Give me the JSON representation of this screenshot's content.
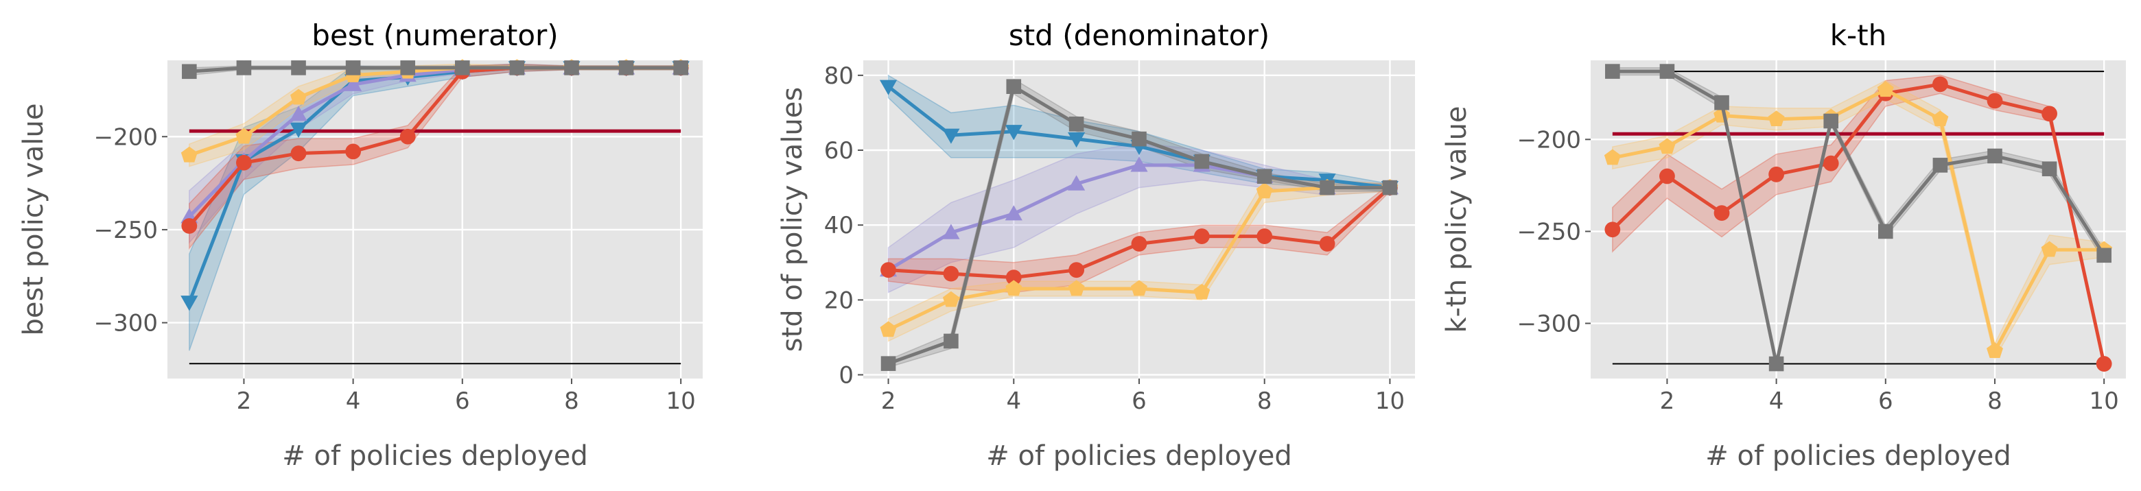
{
  "style": {
    "plot_bg": "#E5E5E5",
    "grid": "#FFFFFF",
    "series_colors": {
      "red": "#E24A33",
      "blue": "#348ABD",
      "purple": "#988ED5",
      "gray": "#777777",
      "yellow": "#FBC15E",
      "crimson": "#A60628",
      "black": "#000000"
    }
  },
  "chart_data": [
    {
      "type": "line",
      "title": "best (numerator)",
      "xlabel": "# of policies deployed",
      "ylabel": "best policy value",
      "xlim": [
        0.6,
        10.4
      ],
      "ylim": [
        -330,
        -159
      ],
      "xticks": [
        2,
        4,
        6,
        8,
        10
      ],
      "yticks": [
        -300,
        -250,
        -200
      ],
      "grid": true,
      "legend": "none",
      "hlines": [
        {
          "y": -197,
          "color": "crimson",
          "width": 5,
          "x_range": [
            1,
            10
          ]
        },
        {
          "y": -322,
          "color": "black",
          "width": 2,
          "x_range": [
            1,
            10
          ]
        }
      ],
      "series": [
        {
          "color": "blue",
          "marker": "triangle-down",
          "x": [
            1,
            2,
            3,
            4,
            5,
            6,
            7,
            8,
            9,
            10
          ],
          "values": [
            -289,
            -213,
            -196,
            -170,
            -168,
            -165,
            -163,
            -163,
            -163,
            -163
          ],
          "band": [
            26,
            18,
            12,
            8,
            5,
            3,
            2,
            1,
            1,
            1
          ]
        },
        {
          "color": "purple",
          "marker": "triangle-up",
          "x": [
            1,
            2,
            3,
            4,
            5,
            6,
            7,
            8,
            9,
            10
          ],
          "values": [
            -243,
            -213,
            -188,
            -172,
            -167,
            -164,
            -163,
            -163,
            -163,
            -163
          ],
          "band": [
            14,
            10,
            8,
            5,
            3,
            2,
            1,
            1,
            1,
            1
          ]
        },
        {
          "color": "red",
          "marker": "circle",
          "x": [
            1,
            2,
            3,
            4,
            5,
            6,
            7,
            8,
            9,
            10
          ],
          "values": [
            -248,
            -214,
            -209,
            -208,
            -200,
            -165,
            -163,
            -163,
            -163,
            -163
          ],
          "band": [
            12,
            9,
            8,
            7,
            6,
            3,
            2,
            1,
            1,
            1
          ]
        },
        {
          "color": "yellow",
          "marker": "pentagon",
          "x": [
            1,
            2,
            3,
            4,
            5,
            6,
            7,
            8,
            9,
            10
          ],
          "values": [
            -210,
            -200,
            -179,
            -167,
            -165,
            -163,
            -163,
            -163,
            -163,
            -163
          ],
          "band": [
            6,
            7,
            6,
            4,
            3,
            2,
            1,
            1,
            1,
            1
          ]
        },
        {
          "color": "gray",
          "marker": "square",
          "x": [
            1,
            2,
            3,
            4,
            5,
            6,
            7,
            8,
            9,
            10
          ],
          "values": [
            -165,
            -163,
            -163,
            -163,
            -163,
            -163,
            -163,
            -163,
            -163,
            -163
          ],
          "band": [
            2,
            1,
            1,
            1,
            1,
            1,
            1,
            1,
            1,
            1
          ]
        }
      ]
    },
    {
      "type": "line",
      "title": "std (denominator)",
      "xlabel": "# of policies deployed",
      "ylabel": "std of policy values",
      "xlim": [
        1.6,
        10.4
      ],
      "ylim": [
        -1,
        84
      ],
      "xticks": [
        2,
        4,
        6,
        8,
        10
      ],
      "yticks": [
        0,
        20,
        40,
        60,
        80
      ],
      "grid": true,
      "legend": "none",
      "hlines": [],
      "series": [
        {
          "color": "blue",
          "marker": "triangle-down",
          "x": [
            2,
            3,
            4,
            5,
            6,
            7,
            8,
            9,
            10
          ],
          "values": [
            77,
            64,
            65,
            63,
            61,
            57,
            53,
            52,
            50
          ],
          "band": [
            3,
            6,
            7,
            5,
            4,
            3,
            2,
            2,
            1
          ]
        },
        {
          "color": "purple",
          "marker": "triangle-up",
          "x": [
            2,
            3,
            4,
            5,
            6,
            7,
            8,
            9,
            10
          ],
          "values": [
            28,
            38,
            43,
            51,
            56,
            56,
            53,
            50,
            50
          ],
          "band": [
            6,
            8,
            9,
            8,
            6,
            4,
            3,
            2,
            1
          ]
        },
        {
          "color": "red",
          "marker": "circle",
          "x": [
            2,
            3,
            4,
            5,
            6,
            7,
            8,
            9,
            10
          ],
          "values": [
            28,
            27,
            26,
            28,
            35,
            37,
            37,
            35,
            50
          ],
          "band": [
            3,
            4,
            4,
            4,
            3,
            3,
            3,
            3,
            1
          ]
        },
        {
          "color": "yellow",
          "marker": "pentagon",
          "x": [
            2,
            3,
            4,
            5,
            6,
            7,
            8,
            9,
            10
          ],
          "values": [
            12,
            20,
            23,
            23,
            23,
            22,
            49,
            50,
            50
          ],
          "band": [
            3,
            3,
            2,
            2,
            2,
            2,
            3,
            2,
            1
          ]
        },
        {
          "color": "gray",
          "marker": "square",
          "x": [
            2,
            3,
            4,
            5,
            6,
            7,
            8,
            9,
            10
          ],
          "values": [
            3,
            9,
            77,
            67,
            63,
            57,
            53,
            50,
            50
          ],
          "band": [
            1,
            2,
            2,
            2,
            2,
            2,
            1,
            1,
            1
          ]
        }
      ]
    },
    {
      "type": "line",
      "title": "k-th",
      "xlabel": "# of policies deployed",
      "ylabel": "k-th policy value",
      "xlim": [
        0.6,
        10.4
      ],
      "ylim": [
        -330,
        -157
      ],
      "xticks": [
        2,
        4,
        6,
        8,
        10
      ],
      "yticks": [
        -300,
        -250,
        -200
      ],
      "grid": true,
      "legend": "none",
      "hlines": [
        {
          "y": -197,
          "color": "crimson",
          "width": 5,
          "x_range": [
            1,
            10
          ]
        },
        {
          "y": -163,
          "color": "black",
          "width": 2,
          "x_range": [
            1,
            10
          ]
        },
        {
          "y": -322,
          "color": "black",
          "width": 2,
          "x_range": [
            1,
            10
          ]
        }
      ],
      "series": [
        {
          "color": "red",
          "marker": "circle",
          "x": [
            1,
            2,
            3,
            4,
            5,
            6,
            7,
            8,
            9,
            10
          ],
          "values": [
            -249,
            -220,
            -240,
            -219,
            -213,
            -175,
            -170,
            -179,
            -186,
            -322
          ],
          "band": [
            12,
            12,
            13,
            11,
            10,
            7,
            5,
            5,
            4,
            1
          ]
        },
        {
          "color": "yellow",
          "marker": "pentagon",
          "x": [
            1,
            2,
            3,
            4,
            5,
            6,
            7,
            8,
            9,
            10
          ],
          "values": [
            -210,
            -204,
            -187,
            -189,
            -188,
            -173,
            -189,
            -315,
            -260,
            -260
          ],
          "band": [
            6,
            6,
            5,
            6,
            5,
            5,
            5,
            4,
            8,
            4
          ]
        },
        {
          "color": "gray",
          "marker": "square",
          "x": [
            1,
            2,
            3,
            4,
            5,
            6,
            7,
            8,
            9,
            10
          ],
          "values": [
            -163,
            -163,
            -180,
            -322,
            -190,
            -250,
            -214,
            -209,
            -216,
            -263
          ],
          "band": [
            2,
            2,
            3,
            1,
            2,
            3,
            3,
            3,
            3,
            3
          ]
        }
      ]
    }
  ]
}
